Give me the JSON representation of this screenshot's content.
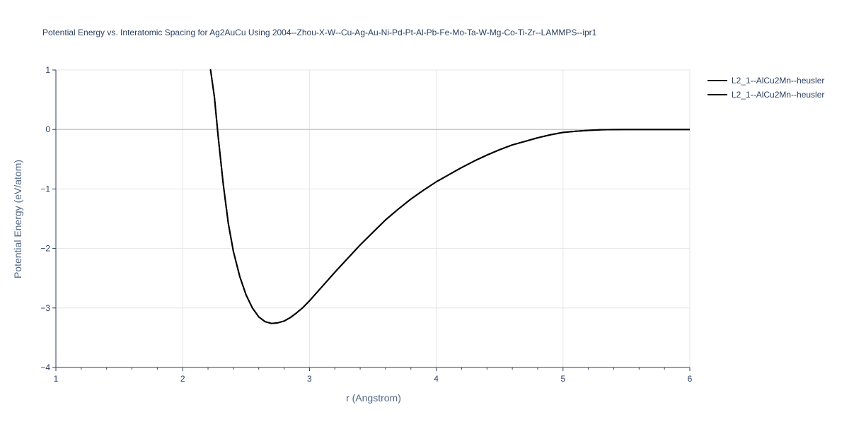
{
  "chart_data": {
    "type": "line",
    "title": "Potential Energy vs. Interatomic Spacing for Ag2AuCu Using 2004--Zhou-X-W--Cu-Ag-Au-Ni-Pd-Pt-Al-Pb-Fe-Mo-Ta-W-Mg-Co-Ti-Zr--LAMMPS--ipr1",
    "xlabel": "r (Angstrom)",
    "ylabel": "Potential Energy (eV/atom)",
    "xlim": [
      1,
      6
    ],
    "ylim": [
      -4,
      1
    ],
    "xticks": [
      1,
      2,
      3,
      4,
      5,
      6
    ],
    "xtick_labels": [
      "1",
      "2",
      "3",
      "4",
      "5",
      "6"
    ],
    "yticks": [
      -4,
      -3,
      -2,
      -1,
      0,
      1
    ],
    "ytick_labels": [
      "−4",
      "−3",
      "−2",
      "−1",
      "0",
      "1"
    ],
    "grid": true,
    "legend_position": "top-right",
    "series": [
      {
        "name": "L2_1--AlCu2Mn--heusler",
        "color": "#000000",
        "x": [
          2.22,
          2.25,
          2.28,
          2.32,
          2.36,
          2.4,
          2.45,
          2.5,
          2.55,
          2.6,
          2.65,
          2.7,
          2.75,
          2.8,
          2.85,
          2.9,
          2.95,
          3.0,
          3.1,
          3.2,
          3.3,
          3.4,
          3.5,
          3.6,
          3.7,
          3.8,
          3.9,
          4.0,
          4.1,
          4.2,
          4.3,
          4.4,
          4.5,
          4.6,
          4.7,
          4.8,
          4.9,
          5.0,
          5.1,
          5.2,
          5.3,
          5.4,
          5.5,
          5.75,
          6.0
        ],
        "y": [
          1.0,
          0.55,
          -0.12,
          -0.92,
          -1.58,
          -2.05,
          -2.47,
          -2.78,
          -3.0,
          -3.15,
          -3.23,
          -3.26,
          -3.25,
          -3.22,
          -3.16,
          -3.08,
          -2.99,
          -2.88,
          -2.64,
          -2.4,
          -2.17,
          -1.94,
          -1.73,
          -1.52,
          -1.34,
          -1.17,
          -1.02,
          -0.88,
          -0.76,
          -0.64,
          -0.53,
          -0.43,
          -0.34,
          -0.26,
          -0.2,
          -0.14,
          -0.09,
          -0.05,
          -0.03,
          -0.015,
          -0.005,
          -0.002,
          0.0,
          0.0,
          0.0
        ]
      },
      {
        "name": "L2_1--AlCu2Mn--heusler",
        "color": "#000000",
        "x": [
          2.22,
          2.25,
          2.28,
          2.32,
          2.36,
          2.4,
          2.45,
          2.5,
          2.55,
          2.6,
          2.65,
          2.7,
          2.75,
          2.8,
          2.85,
          2.9,
          2.95,
          3.0,
          3.1,
          3.2,
          3.3,
          3.4,
          3.5,
          3.6,
          3.7,
          3.8,
          3.9,
          4.0,
          4.1,
          4.2,
          4.3,
          4.4,
          4.5,
          4.6,
          4.7,
          4.8,
          4.9,
          5.0,
          5.1,
          5.2,
          5.3,
          5.4,
          5.5,
          5.75,
          6.0
        ],
        "y": [
          1.0,
          0.55,
          -0.12,
          -0.92,
          -1.58,
          -2.05,
          -2.47,
          -2.78,
          -3.0,
          -3.15,
          -3.23,
          -3.26,
          -3.25,
          -3.22,
          -3.16,
          -3.08,
          -2.99,
          -2.88,
          -2.64,
          -2.4,
          -2.17,
          -1.94,
          -1.73,
          -1.52,
          -1.34,
          -1.17,
          -1.02,
          -0.88,
          -0.76,
          -0.64,
          -0.53,
          -0.43,
          -0.34,
          -0.26,
          -0.2,
          -0.14,
          -0.09,
          -0.05,
          -0.03,
          -0.015,
          -0.005,
          -0.002,
          0.0,
          0.0,
          0.0
        ]
      }
    ]
  }
}
